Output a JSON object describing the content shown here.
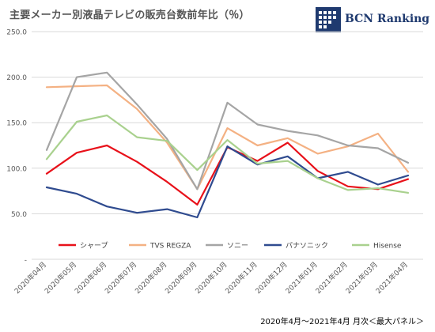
{
  "chart_data": {
    "type": "line",
    "title": "主要メーカー別液晶テレビの販売台数前年比（％）",
    "brand": "BCN Ranking",
    "footnote": "2020年4月～2021年4月 月次＜最大パネル＞",
    "categories": [
      "2020年04月",
      "2020年05月",
      "2020年06月",
      "2020年07月",
      "2020年08月",
      "2020年09月",
      "2020年10月",
      "2020年11月",
      "2020年12月",
      "2021年01月",
      "2021年02月",
      "2021年03月",
      "2021年04月"
    ],
    "y_ticks": [
      "-",
      "50.0",
      "100.0",
      "150.0",
      "200.0",
      "250.0"
    ],
    "ylim": [
      0,
      250
    ],
    "grid": true,
    "legend_position": "bottom",
    "series": [
      {
        "name": "シャープ",
        "color": "#e8111a",
        "values": [
          94,
          117,
          125,
          107,
          85,
          60,
          123,
          108,
          128,
          97,
          80,
          77,
          88
        ]
      },
      {
        "name": "TVS REGZA",
        "color": "#f4b183",
        "values": [
          189,
          190,
          191,
          165,
          128,
          77,
          144,
          125,
          133,
          116,
          124,
          138,
          96
        ]
      },
      {
        "name": "ソニー",
        "color": "#a5a5a5",
        "values": [
          120,
          200,
          205,
          170,
          132,
          77,
          172,
          148,
          141,
          136,
          125,
          122,
          106
        ]
      },
      {
        "name": "パナソニック",
        "color": "#2f4b8f",
        "values": [
          79,
          72,
          58,
          51,
          55,
          46,
          124,
          104,
          113,
          89,
          96,
          82,
          92
        ]
      },
      {
        "name": "Hisense",
        "color": "#a9d18e",
        "values": [
          110,
          151,
          158,
          134,
          130,
          98,
          131,
          105,
          108,
          89,
          76,
          78,
          73
        ]
      }
    ]
  }
}
